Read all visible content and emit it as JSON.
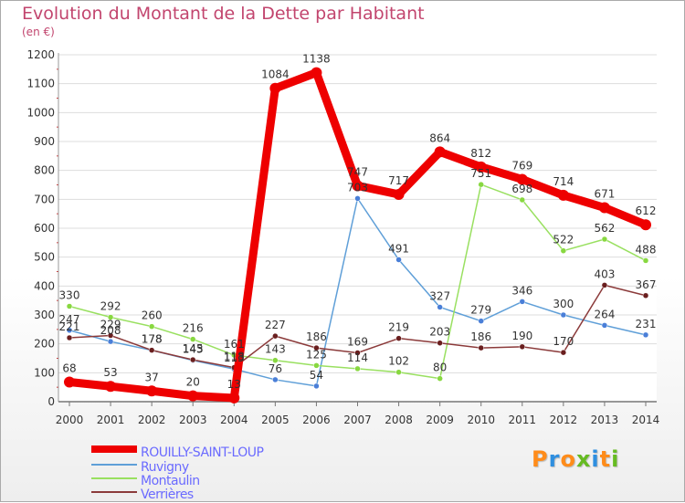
{
  "title": "Evolution du Montant de la Dette par Habitant",
  "subtitle": "(en €)",
  "colors": {
    "title": "#c2456e",
    "axis_text": "#333333",
    "legend_text": "#6a6aff",
    "grid": "#dddddd"
  },
  "chart_data": {
    "type": "line",
    "x": [
      "2000",
      "2001",
      "2002",
      "2003",
      "2004",
      "2005",
      "2006",
      "2007",
      "2008",
      "2009",
      "2010",
      "2011",
      "2012",
      "2013",
      "2014"
    ],
    "ylim": [
      0,
      1200
    ],
    "yticks": [
      0,
      100,
      200,
      300,
      400,
      500,
      600,
      700,
      800,
      900,
      1000,
      1100,
      1200
    ],
    "grid": "horizontal",
    "legend": "bottom-left",
    "series": [
      {
        "name": "ROUILLY-SAINT-LOUP",
        "color": "#ee0000",
        "dot": "#ee0000",
        "width": 9,
        "dot_r": 6,
        "values": [
          68,
          53,
          37,
          20,
          13,
          1084,
          1138,
          747,
          717,
          864,
          812,
          769,
          714,
          671,
          612
        ],
        "labels": [
          "68",
          "53",
          "37",
          "20",
          "13",
          "1084",
          "1138",
          "747",
          "717",
          "864",
          "812",
          "769",
          "714",
          "671",
          "612"
        ]
      },
      {
        "name": "Ruvigny",
        "color": "#5f9fd8",
        "dot": "#4a7fd8",
        "width": 1.5,
        "dot_r": 3,
        "values": [
          247,
          208,
          178,
          143,
          113,
          76,
          54,
          703,
          491,
          327,
          279,
          346,
          300,
          264,
          231
        ],
        "labels": [
          "247",
          "208",
          "178",
          "143",
          "113",
          "76",
          "54",
          "703",
          "491",
          "327",
          "279",
          "346",
          "300",
          "264",
          "231"
        ]
      },
      {
        "name": "Montaulin",
        "color": "#99e060",
        "dot": "#88d840",
        "width": 1.5,
        "dot_r": 3,
        "values": [
          330,
          292,
          260,
          216,
          161,
          143,
          125,
          114,
          102,
          80,
          751,
          698,
          522,
          562,
          488
        ],
        "labels": [
          "330",
          "292",
          "260",
          "216",
          "161",
          "143",
          "125",
          "114",
          "102",
          "80",
          "751",
          "698",
          "522",
          "562",
          "488"
        ]
      },
      {
        "name": "Verrières",
        "color": "#8b3a3a",
        "dot": "#6a1f1f",
        "width": 1.5,
        "dot_r": 3,
        "values": [
          221,
          229,
          178,
          145,
          118,
          227,
          186,
          169,
          219,
          203,
          186,
          190,
          170,
          403,
          367
        ],
        "labels": [
          "221",
          "229",
          "178",
          "145",
          "118",
          "227",
          "186",
          "169",
          "219",
          "203",
          "186",
          "190",
          "170",
          "403",
          "367"
        ]
      }
    ]
  },
  "logo": {
    "letters": [
      "P",
      "r",
      "o",
      "x",
      "i",
      "t",
      "i"
    ],
    "colors": [
      "#ff8c1a",
      "#2f8fe0",
      "#ff8c1a",
      "#66bb22",
      "#2f8fe0",
      "#ff8c1a",
      "#66bb22"
    ]
  }
}
